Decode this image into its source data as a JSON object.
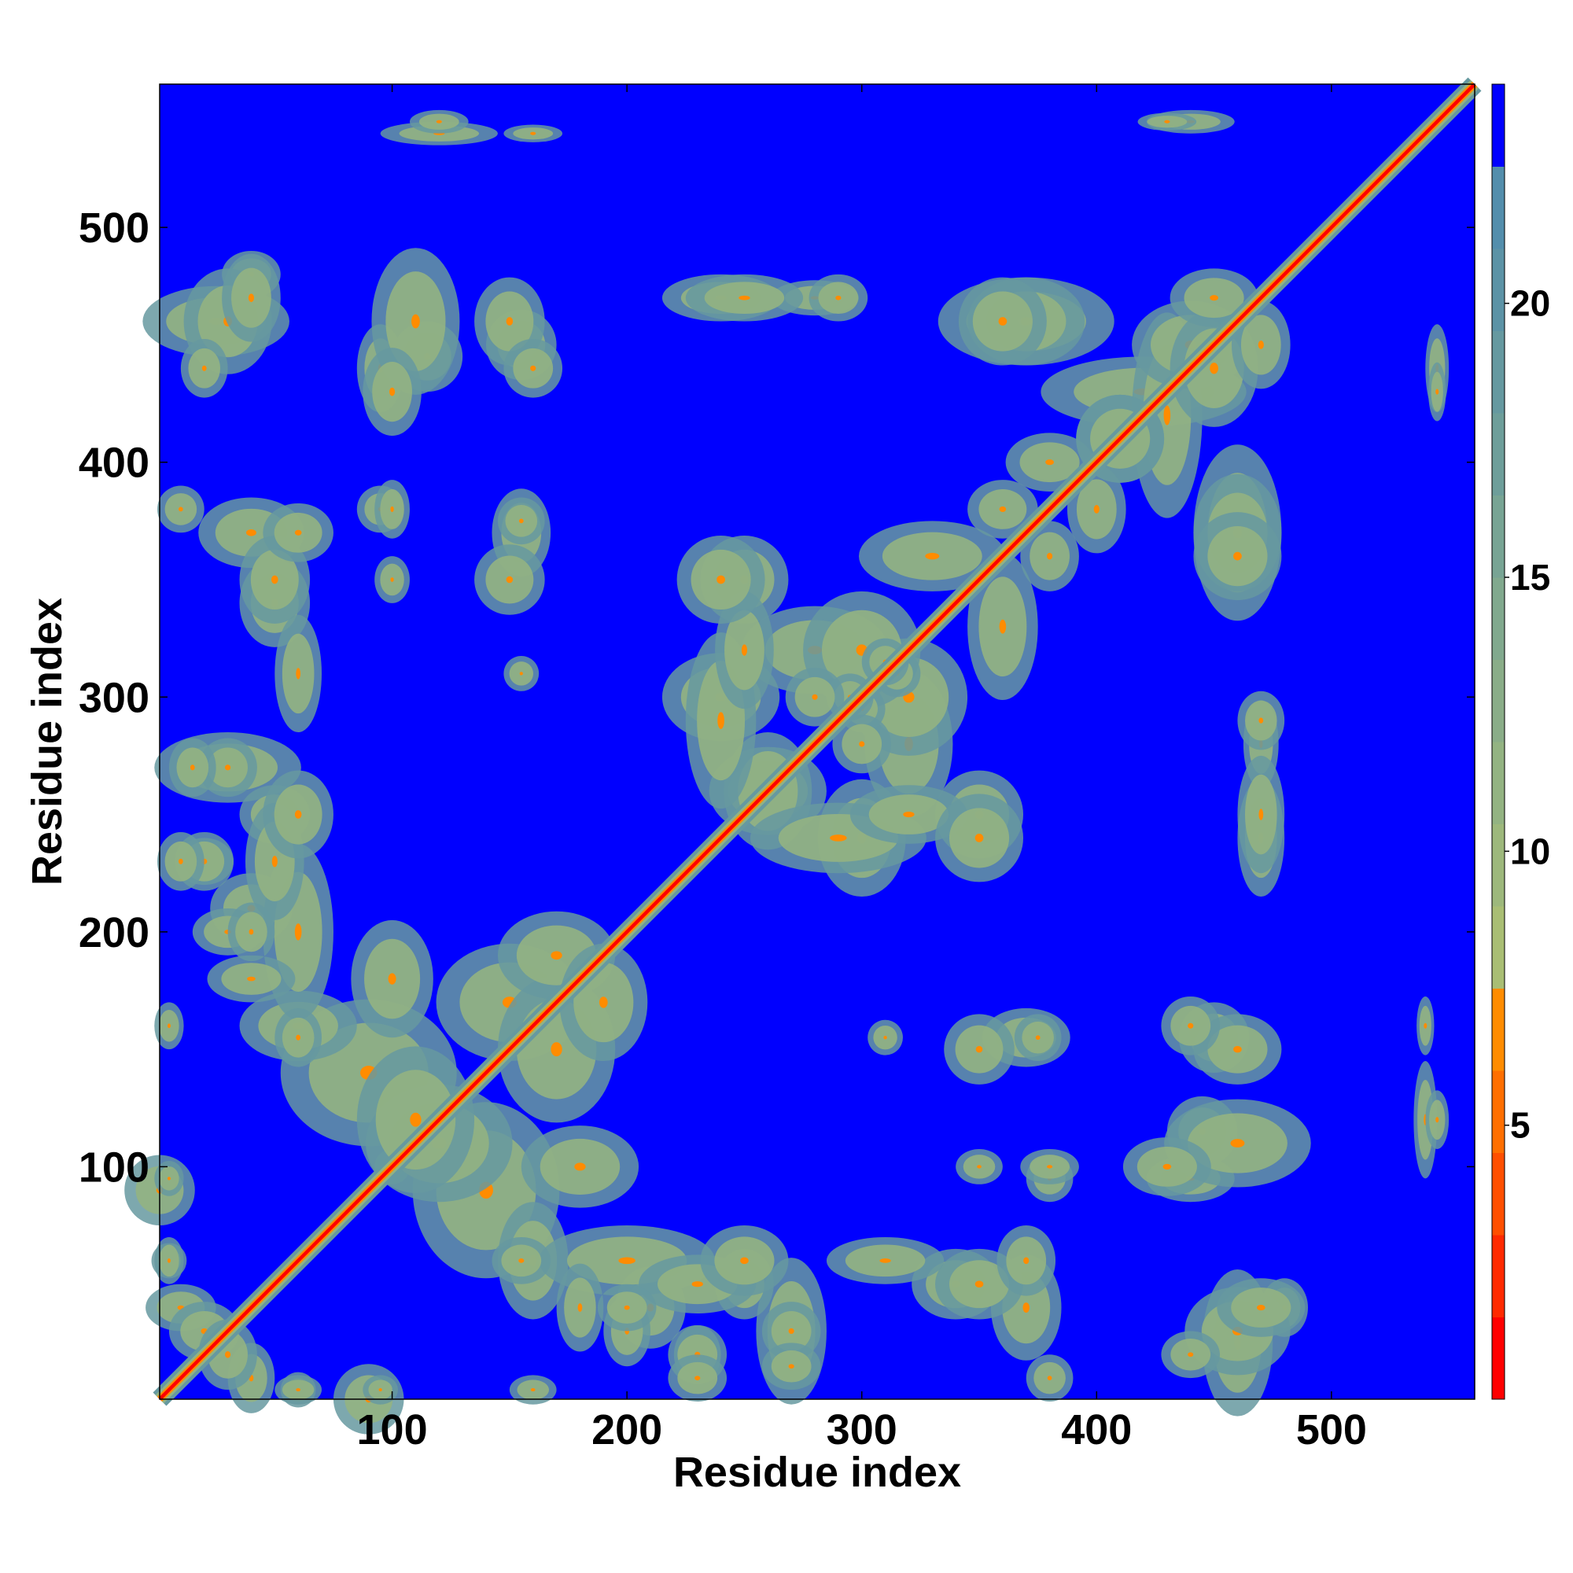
{
  "chart_data": {
    "type": "heatmap",
    "title": "",
    "xlabel": "Residue index",
    "ylabel": "Residue index",
    "xlim": [
      1,
      561
    ],
    "ylim": [
      1,
      561
    ],
    "x_ticks": [
      100,
      200,
      300,
      400,
      500
    ],
    "y_ticks": [
      100,
      200,
      300,
      400,
      500
    ],
    "grid": false,
    "legend": "colorbar-right",
    "colorbar": {
      "range": [
        0,
        24
      ],
      "ticks": [
        5,
        10,
        15,
        20
      ],
      "levels": [
        {
          "from": 0,
          "to": 1.5,
          "color": "#ff0000"
        },
        {
          "from": 1.5,
          "to": 3,
          "color": "#ff2a00"
        },
        {
          "from": 3,
          "to": 4.5,
          "color": "#ff4f00"
        },
        {
          "from": 4.5,
          "to": 6,
          "color": "#ff6f00"
        },
        {
          "from": 6,
          "to": 7.5,
          "color": "#ff8c00"
        },
        {
          "from": 7.5,
          "to": 9,
          "color": "#a9be74"
        },
        {
          "from": 9,
          "to": 10.5,
          "color": "#9db87c"
        },
        {
          "from": 10.5,
          "to": 12,
          "color": "#93b382"
        },
        {
          "from": 12,
          "to": 13.5,
          "color": "#8aad88"
        },
        {
          "from": 13.5,
          "to": 15,
          "color": "#81a98e"
        },
        {
          "from": 15,
          "to": 16.5,
          "color": "#78a494"
        },
        {
          "from": 16.5,
          "to": 18,
          "color": "#6e9e9a"
        },
        {
          "from": 18,
          "to": 19.5,
          "color": "#6699a0"
        },
        {
          "from": 19.5,
          "to": 21,
          "color": "#5c93a6"
        },
        {
          "from": 21,
          "to": 22.5,
          "color": "#538eac"
        },
        {
          "from": 22.5,
          "to": 24,
          "color": "#0000ff"
        }
      ]
    },
    "diagonal": {
      "from": 1,
      "to": 561
    },
    "contact_blobs": [
      [
        1,
        90,
        12,
        12
      ],
      [
        100,
        100,
        6,
        6
      ],
      [
        30,
        270,
        25,
        12
      ],
      [
        50,
        250,
        12,
        10
      ],
      [
        40,
        210,
        14,
        12
      ],
      [
        90,
        140,
        30,
        25
      ],
      [
        120,
        110,
        25,
        20
      ],
      [
        150,
        170,
        25,
        20
      ],
      [
        60,
        160,
        20,
        12
      ],
      [
        180,
        100,
        20,
        14
      ],
      [
        170,
        190,
        20,
        15
      ],
      [
        200,
        60,
        30,
        12
      ],
      [
        230,
        50,
        20,
        10
      ],
      [
        260,
        260,
        20,
        15
      ],
      [
        240,
        300,
        20,
        15
      ],
      [
        280,
        320,
        25,
        15
      ],
      [
        320,
        300,
        20,
        20
      ],
      [
        250,
        350,
        15,
        15
      ],
      [
        330,
        360,
        25,
        12
      ],
      [
        360,
        380,
        12,
        10
      ],
      [
        290,
        240,
        30,
        12
      ],
      [
        320,
        250,
        20,
        10
      ],
      [
        350,
        240,
        15,
        15
      ],
      [
        420,
        430,
        35,
        12
      ],
      [
        370,
        460,
        30,
        15
      ],
      [
        440,
        450,
        20,
        15
      ],
      [
        460,
        370,
        15,
        20
      ],
      [
        410,
        410,
        15,
        15
      ],
      [
        380,
        400,
        15,
        10
      ],
      [
        40,
        370,
        18,
        12
      ],
      [
        10,
        380,
        8,
        8
      ],
      [
        50,
        340,
        12,
        15
      ],
      [
        95,
        440,
        8,
        15
      ],
      [
        115,
        445,
        12,
        12
      ],
      [
        155,
        450,
        12,
        12
      ],
      [
        95,
        380,
        8,
        8
      ],
      [
        155,
        370,
        10,
        15
      ],
      [
        25,
        460,
        25,
        12
      ],
      [
        40,
        480,
        10,
        8
      ],
      [
        240,
        470,
        20,
        8
      ],
      [
        280,
        470,
        15,
        6
      ],
      [
        360,
        460,
        15,
        15
      ],
      [
        450,
        470,
        15,
        10
      ],
      [
        120,
        540,
        20,
        4
      ],
      [
        440,
        545,
        15,
        4
      ],
      [
        160,
        540,
        10,
        3
      ],
      [
        460,
        110,
        25,
        15
      ],
      [
        430,
        100,
        15,
        10
      ],
      [
        460,
        150,
        15,
        12
      ],
      [
        440,
        160,
        10,
        10
      ],
      [
        460,
        30,
        18,
        15
      ],
      [
        470,
        40,
        15,
        10
      ],
      [
        440,
        20,
        10,
        8
      ],
      [
        350,
        50,
        15,
        12
      ],
      [
        370,
        60,
        10,
        12
      ],
      [
        310,
        60,
        20,
        8
      ],
      [
        350,
        150,
        12,
        12
      ],
      [
        375,
        155,
        8,
        8
      ],
      [
        310,
        155,
        6,
        6
      ],
      [
        350,
        100,
        8,
        6
      ],
      [
        380,
        100,
        10,
        6
      ],
      [
        40,
        180,
        15,
        8
      ],
      [
        30,
        200,
        12,
        8
      ],
      [
        20,
        230,
        10,
        8
      ],
      [
        5,
        60,
        6,
        6
      ],
      [
        10,
        40,
        12,
        8
      ],
      [
        20,
        30,
        12,
        10
      ],
      [
        250,
        60,
        15,
        12
      ],
      [
        270,
        30,
        10,
        10
      ],
      [
        230,
        20,
        10,
        10
      ],
      [
        155,
        60,
        10,
        8
      ],
      [
        200,
        40,
        10,
        8
      ],
      [
        470,
        250,
        8,
        20
      ],
      [
        470,
        290,
        8,
        10
      ],
      [
        545,
        430,
        3,
        10
      ],
      [
        545,
        120,
        4,
        10
      ],
      [
        60,
        5,
        8,
        5
      ],
      [
        95,
        5,
        6,
        5
      ],
      [
        160,
        5,
        8,
        5
      ],
      [
        230,
        10,
        10,
        8
      ],
      [
        270,
        15,
        10,
        8
      ],
      [
        300,
        295,
        8,
        8
      ],
      [
        315,
        310,
        8,
        8
      ],
      [
        300,
        280,
        10,
        10
      ]
    ]
  }
}
